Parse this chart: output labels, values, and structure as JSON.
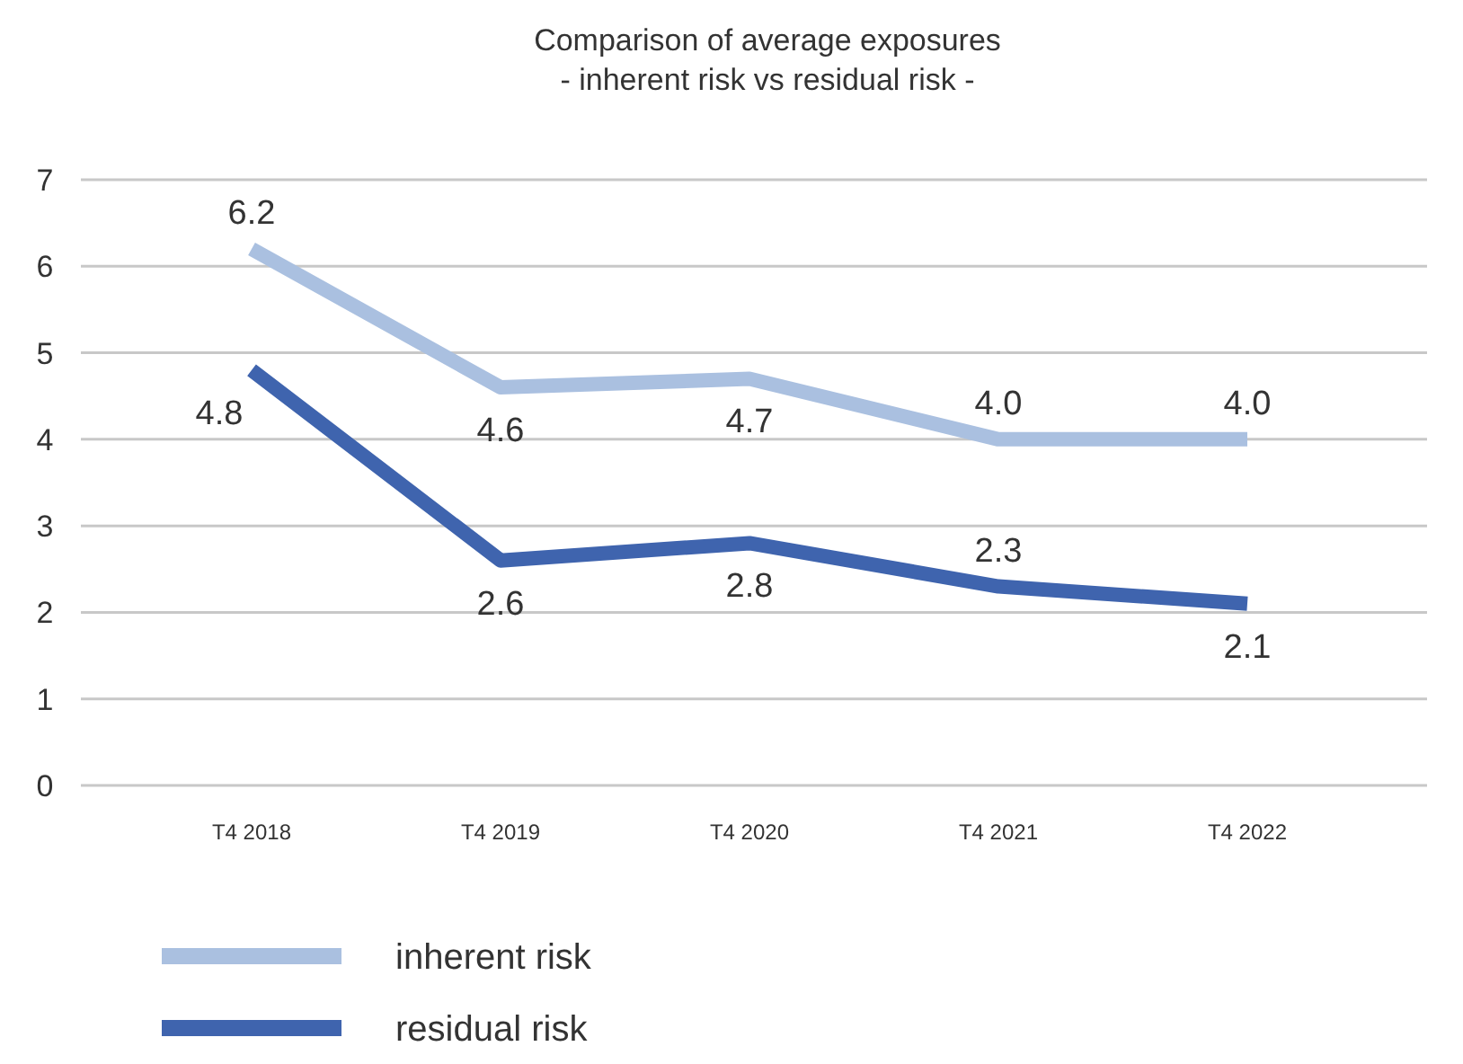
{
  "chart_data": {
    "type": "line",
    "title": "Comparison of average exposures",
    "subtitle": "- inherent risk vs residual risk -",
    "categories": [
      "T4 2018",
      "T4 2019",
      "T4 2020",
      "T4 2021",
      "T4 2022"
    ],
    "series": [
      {
        "name": "inherent risk",
        "color": "#aac0e0",
        "values": [
          6.2,
          4.6,
          4.7,
          4.0,
          4.0
        ],
        "value_labels": [
          "6.2",
          "4.6",
          "4.7",
          "4.0",
          "4.0"
        ]
      },
      {
        "name": "residual risk",
        "color": "#3f64ae",
        "values": [
          4.8,
          2.6,
          2.8,
          2.3,
          2.1
        ],
        "value_labels": [
          "4.8",
          "2.6",
          "2.8",
          "2.3",
          "2.1"
        ]
      }
    ],
    "ylim": [
      0,
      7
    ],
    "yticks": [
      0,
      1,
      2,
      3,
      4,
      5,
      6,
      7
    ],
    "grid": "y",
    "legend": "bottom left",
    "marker": "none",
    "line_style": "solid"
  }
}
